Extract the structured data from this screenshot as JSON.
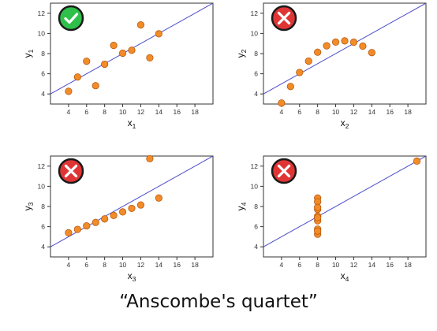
{
  "caption": "“Anscombe's quartet”",
  "colors": {
    "point_fill": "#f28c28",
    "point_stroke": "#b85a12",
    "regression_line": "#4b4bc8",
    "badge_good": "#2ec04a",
    "badge_bad": "#e03535",
    "badge_ring": "#1a1a1a"
  },
  "chart_data": [
    {
      "type": "scatter",
      "xlabel": "x",
      "xlabel_sub": "1",
      "ylabel": "y",
      "ylabel_sub": "1",
      "xlim": [
        2,
        20
      ],
      "ylim": [
        3,
        13
      ],
      "xticks": [
        4,
        6,
        8,
        10,
        12,
        14,
        16,
        18
      ],
      "yticks": [
        4,
        6,
        8,
        10,
        12
      ],
      "badge": "check-icon",
      "regression": {
        "intercept": 3.0,
        "slope": 0.5
      },
      "x": [
        10,
        8,
        13,
        9,
        11,
        14,
        6,
        4,
        12,
        7,
        5
      ],
      "y": [
        8.04,
        6.95,
        7.58,
        8.81,
        8.33,
        9.96,
        7.24,
        4.26,
        10.84,
        4.82,
        5.68
      ]
    },
    {
      "type": "scatter",
      "xlabel": "x",
      "xlabel_sub": "2",
      "ylabel": "y",
      "ylabel_sub": "2",
      "xlim": [
        2,
        20
      ],
      "ylim": [
        3,
        13
      ],
      "xticks": [
        4,
        6,
        8,
        10,
        12,
        14,
        16,
        18
      ],
      "yticks": [
        4,
        6,
        8,
        10,
        12
      ],
      "badge": "cross-icon",
      "regression": {
        "intercept": 3.0,
        "slope": 0.5
      },
      "x": [
        10,
        8,
        13,
        9,
        11,
        14,
        6,
        4,
        12,
        7,
        5
      ],
      "y": [
        9.14,
        8.14,
        8.74,
        8.77,
        9.26,
        8.1,
        6.13,
        3.1,
        9.13,
        7.26,
        4.74
      ]
    },
    {
      "type": "scatter",
      "xlabel": "x",
      "xlabel_sub": "3",
      "ylabel": "y",
      "ylabel_sub": "3",
      "xlim": [
        2,
        20
      ],
      "ylim": [
        3,
        13
      ],
      "xticks": [
        4,
        6,
        8,
        10,
        12,
        14,
        16,
        18
      ],
      "yticks": [
        4,
        6,
        8,
        10,
        12
      ],
      "badge": "cross-icon",
      "regression": {
        "intercept": 3.0,
        "slope": 0.5
      },
      "x": [
        10,
        8,
        13,
        9,
        11,
        14,
        6,
        4,
        12,
        7,
        5
      ],
      "y": [
        7.46,
        6.77,
        12.74,
        7.11,
        7.81,
        8.84,
        6.08,
        5.39,
        8.15,
        6.42,
        5.73
      ]
    },
    {
      "type": "scatter",
      "xlabel": "x",
      "xlabel_sub": "4",
      "ylabel": "y",
      "ylabel_sub": "4",
      "xlim": [
        2,
        20
      ],
      "ylim": [
        3,
        13
      ],
      "xticks": [
        4,
        6,
        8,
        10,
        12,
        14,
        16,
        18
      ],
      "yticks": [
        4,
        6,
        8,
        10,
        12
      ],
      "badge": "cross-icon",
      "regression": {
        "intercept": 3.0,
        "slope": 0.5
      },
      "x": [
        8,
        8,
        8,
        8,
        8,
        8,
        8,
        19,
        8,
        8,
        8
      ],
      "y": [
        6.58,
        5.76,
        7.71,
        8.84,
        8.47,
        7.04,
        5.25,
        12.5,
        5.56,
        7.91,
        6.89
      ]
    }
  ]
}
